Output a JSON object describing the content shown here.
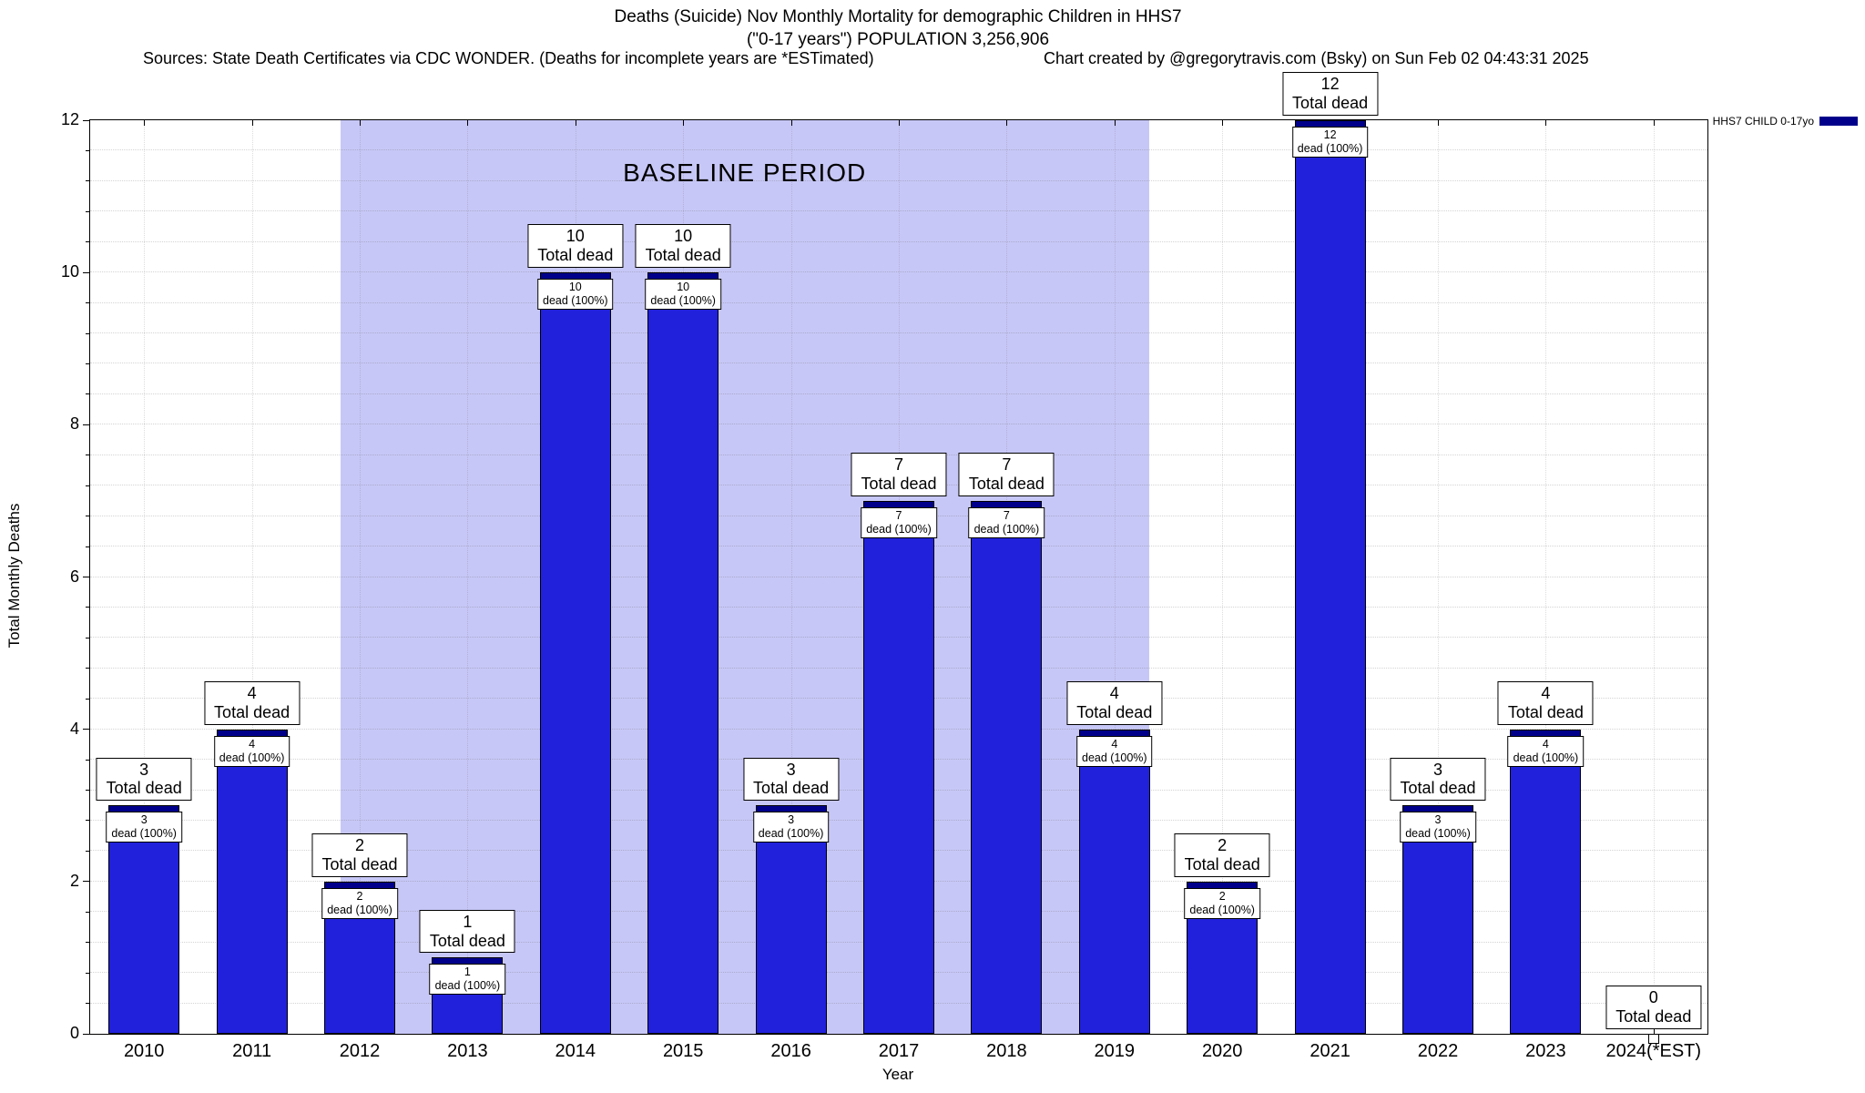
{
  "header": {
    "title_line1": "Deaths (Suicide) Nov Monthly Mortality for demographic Children in HHS7",
    "title_line2": "(\"0-17 years\") POPULATION 3,256,906",
    "sources_note": "Sources: State Death Certificates via CDC WONDER. (Deaths for incomplete years are *ESTimated)",
    "credit": "Chart created by @gregorytravis.com (Bsky) on Sun Feb 02 04:43:31 2025"
  },
  "legend": {
    "label": "HHS7 CHILD 0-17yo",
    "swatch_color": "#00008b"
  },
  "chart_data": {
    "type": "bar",
    "title": "Deaths (Suicide) Nov Monthly Mortality for demographic Children in HHS7 (\"0-17 years\") POPULATION 3,256,906",
    "xlabel": "Year",
    "ylabel": "Total Monthly Deaths",
    "ylim": [
      0,
      12
    ],
    "yticks": [
      0,
      2,
      4,
      6,
      8,
      10,
      12
    ],
    "categories": [
      "2010",
      "2011",
      "2012",
      "2013",
      "2014",
      "2015",
      "2016",
      "2017",
      "2018",
      "2019",
      "2020",
      "2021",
      "2022",
      "2023",
      "2024(*EST)"
    ],
    "values": [
      3,
      4,
      2,
      1,
      10,
      10,
      3,
      7,
      7,
      4,
      2,
      12,
      3,
      4,
      0
    ],
    "series_name": "HHS7 CHILD 0-17yo",
    "bar_color": "#2121dc",
    "bar_cap_color": "#00008b",
    "total_label_suffix": "Total dead",
    "inner_label_suffix": "dead (100%)",
    "baseline_region": {
      "label": "BASELINE PERIOD",
      "start_index": 2,
      "end_index": 9,
      "start_category": "2012",
      "end_category": "2019",
      "color": "#c7c7f7"
    },
    "grid": true,
    "legend_position": "top-right"
  }
}
